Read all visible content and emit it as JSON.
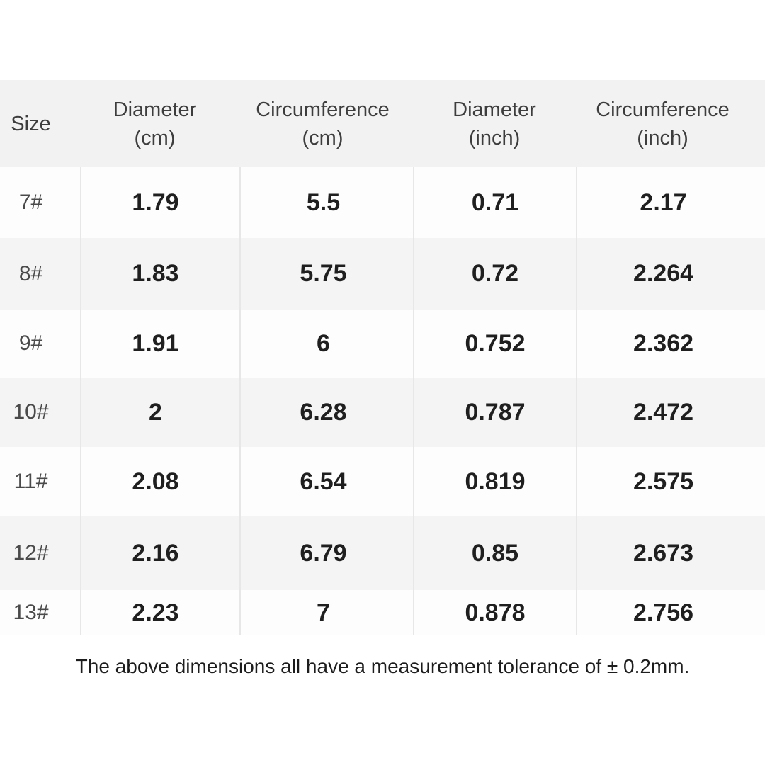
{
  "table": {
    "columns": [
      {
        "label": "Size",
        "unit": ""
      },
      {
        "label": "Diameter",
        "unit": "(cm)"
      },
      {
        "label": "Circumference",
        "unit": "(cm)"
      },
      {
        "label": "Diameter",
        "unit": "(inch)"
      },
      {
        "label": "Circumference",
        "unit": "(inch)"
      }
    ],
    "rows": [
      {
        "size": "7#",
        "diameter_cm": "1.79",
        "circumference_cm": "5.5",
        "diameter_inch": "0.71",
        "circumference_inch": "2.17"
      },
      {
        "size": "8#",
        "diameter_cm": "1.83",
        "circumference_cm": "5.75",
        "diameter_inch": "0.72",
        "circumference_inch": "2.264"
      },
      {
        "size": "9#",
        "diameter_cm": "1.91",
        "circumference_cm": "6",
        "diameter_inch": "0.752",
        "circumference_inch": "2.362"
      },
      {
        "size": "10#",
        "diameter_cm": "2",
        "circumference_cm": "6.28",
        "diameter_inch": "0.787",
        "circumference_inch": "2.472"
      },
      {
        "size": "11#",
        "diameter_cm": "2.08",
        "circumference_cm": "6.54",
        "diameter_inch": "0.819",
        "circumference_inch": "2.575"
      },
      {
        "size": "12#",
        "diameter_cm": "2.16",
        "circumference_cm": "6.79",
        "diameter_inch": "0.85",
        "circumference_inch": "2.673"
      },
      {
        "size": "13#",
        "diameter_cm": "2.23",
        "circumference_cm": "7",
        "diameter_inch": "0.878",
        "circumference_inch": "2.756"
      }
    ]
  },
  "footer": {
    "note": "The above dimensions all have a measurement tolerance of ± 0.2mm."
  },
  "colors": {
    "header_bg": "#f2f2f2",
    "row_alt_bg": "#f4f4f4",
    "row_bg": "#fdfdfd",
    "separator": "#e7e7e7",
    "header_text": "#3d3d3d",
    "size_text": "#4a4a4a",
    "value_text": "#1f1f1f"
  },
  "chart_data": {
    "type": "table",
    "title": "",
    "columns": [
      "Size",
      "Diameter (cm)",
      "Circumference (cm)",
      "Diameter (inch)",
      "Circumference (inch)"
    ],
    "rows": [
      [
        "7#",
        1.79,
        5.5,
        0.71,
        2.17
      ],
      [
        "8#",
        1.83,
        5.75,
        0.72,
        2.264
      ],
      [
        "9#",
        1.91,
        6,
        0.752,
        2.362
      ],
      [
        "10#",
        2,
        6.28,
        0.787,
        2.472
      ],
      [
        "11#",
        2.08,
        6.54,
        0.819,
        2.575
      ],
      [
        "12#",
        2.16,
        6.79,
        0.85,
        2.673
      ],
      [
        "13#",
        2.23,
        7,
        0.878,
        2.756
      ]
    ],
    "note": "The above dimensions all have a measurement tolerance of ± 0.2mm."
  }
}
